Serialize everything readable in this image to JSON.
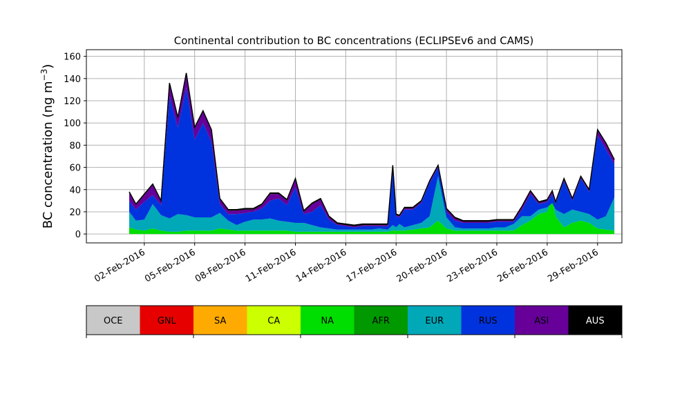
{
  "chart_data": {
    "type": "area",
    "stacked": true,
    "title": "Continental contribution to BC concentrations (ECLIPSEv6 and CAMS)",
    "ylabel": "BC concentration (ng m⁻³)",
    "ylabel_main": "BC concentration (ng m",
    "ylabel_sup": "−3",
    "ylabel_end": ")",
    "xlabel": "",
    "ylim": [
      -8,
      166
    ],
    "yticks": [
      0,
      20,
      40,
      60,
      80,
      100,
      120,
      140,
      160
    ],
    "xlim_days": [
      -1.45,
      30.45
    ],
    "xticks": [
      {
        "day": 2,
        "label": "02-Feb-2016"
      },
      {
        "day": 5,
        "label": "05-Feb-2016"
      },
      {
        "day": 8,
        "label": "08-Feb-2016"
      },
      {
        "day": 11,
        "label": "11-Feb-2016"
      },
      {
        "day": 14,
        "label": "14-Feb-2016"
      },
      {
        "day": 17,
        "label": "17-Feb-2016"
      },
      {
        "day": 20,
        "label": "20-Feb-2016"
      },
      {
        "day": 23,
        "label": "23-Feb-2016"
      },
      {
        "day": 26,
        "label": "26-Feb-2016"
      },
      {
        "day": 29,
        "label": "29-Feb-2016"
      }
    ],
    "grid": true,
    "legend": "bottom colorbar",
    "x": [
      1.1,
      1.5,
      2.0,
      2.5,
      3.0,
      3.5,
      4.0,
      4.5,
      5.0,
      5.5,
      6.0,
      6.5,
      7.0,
      7.5,
      8.0,
      8.5,
      9.0,
      9.5,
      10.0,
      10.5,
      11.0,
      11.5,
      12.0,
      12.5,
      13.0,
      13.5,
      14.0,
      14.5,
      15.0,
      15.5,
      16.0,
      16.5,
      16.8,
      17.0,
      17.2,
      17.5,
      18.0,
      18.5,
      19.0,
      19.5,
      20.0,
      20.5,
      21.0,
      21.5,
      22.0,
      22.5,
      23.0,
      23.5,
      24.0,
      24.5,
      25.0,
      25.5,
      26.0,
      26.3,
      26.5,
      27.0,
      27.5,
      28.0,
      28.5,
      29.0,
      29.5,
      30.0
    ],
    "series": [
      {
        "name": "NA",
        "color": "#00dd00",
        "values": [
          6,
          4,
          3,
          5,
          3,
          2,
          2,
          3,
          3,
          3,
          3,
          5,
          4,
          3,
          3,
          3,
          3,
          3,
          3,
          3,
          2,
          2,
          2,
          2,
          2,
          2,
          2,
          2,
          2,
          2,
          2,
          2,
          3,
          3,
          3,
          3,
          4,
          5,
          6,
          12,
          5,
          3,
          3,
          3,
          3,
          3,
          3,
          3,
          3,
          8,
          12,
          18,
          20,
          32,
          16,
          6,
          10,
          12,
          10,
          5,
          4,
          3
        ]
      },
      {
        "name": "EUR",
        "color": "#00a8b8",
        "values": [
          14,
          8,
          10,
          22,
          14,
          12,
          16,
          14,
          12,
          12,
          12,
          14,
          8,
          5,
          8,
          10,
          10,
          11,
          9,
          8,
          8,
          8,
          6,
          4,
          3,
          2,
          2,
          2,
          2,
          2,
          3,
          2,
          5,
          3,
          6,
          3,
          4,
          5,
          10,
          40,
          10,
          3,
          2,
          2,
          2,
          2,
          3,
          3,
          6,
          8,
          4,
          4,
          4,
          -4,
          6,
          12,
          12,
          8,
          8,
          8,
          12,
          30
        ]
      },
      {
        "name": "RUS",
        "color": "#0033dd",
        "values": [
          10,
          10,
          16,
          8,
          9,
          110,
          78,
          115,
          70,
          85,
          68,
          8,
          6,
          10,
          8,
          7,
          10,
          16,
          20,
          15,
          32,
          8,
          12,
          20,
          8,
          4,
          3,
          2,
          3,
          3,
          2,
          3,
          52,
          10,
          6,
          16,
          14,
          18,
          30,
          8,
          5,
          6,
          5,
          5,
          5,
          5,
          5,
          5,
          2,
          6,
          20,
          5,
          5,
          8,
          5,
          30,
          8,
          30,
          20,
          76,
          60,
          30
        ]
      },
      {
        "name": "ASI",
        "color": "#660099",
        "values": [
          7,
          4,
          6,
          9,
          3,
          11,
          8,
          12,
          10,
          10,
          10,
          4,
          3,
          3,
          3,
          2,
          3,
          6,
          4,
          4,
          7,
          2,
          7,
          5,
          2,
          1,
          1,
          1,
          1,
          1,
          1,
          1,
          1,
          1,
          1,
          1,
          1,
          1,
          1,
          1,
          2,
          2,
          1,
          1,
          1,
          1,
          1,
          1,
          1,
          2,
          2,
          1,
          1,
          2,
          1,
          1,
          1,
          1,
          1,
          4,
          5,
          3
        ]
      },
      {
        "name": "AUS",
        "color": "#000000",
        "values": [
          1,
          1,
          1,
          1,
          1,
          1,
          1,
          1,
          1,
          1,
          1,
          1,
          1,
          1,
          1,
          1,
          1,
          1,
          1,
          1,
          1,
          1,
          1,
          1,
          1,
          1,
          1,
          1,
          1,
          1,
          1,
          1,
          1,
          1,
          1,
          1,
          1,
          1,
          1,
          1,
          1,
          1,
          1,
          1,
          1,
          1,
          1,
          1,
          1,
          1,
          1,
          1,
          1,
          1,
          1,
          1,
          1,
          1,
          1,
          1,
          1,
          1
        ]
      }
    ],
    "colorbar": [
      {
        "label": "OCE",
        "color": "#c8c8c8",
        "text": "#000000"
      },
      {
        "label": "GNL",
        "color": "#e60000",
        "text": "#000000"
      },
      {
        "label": "SA",
        "color": "#ffaa00",
        "text": "#000000"
      },
      {
        "label": "CA",
        "color": "#ccff00",
        "text": "#000000"
      },
      {
        "label": "NA",
        "color": "#00dd00",
        "text": "#000000"
      },
      {
        "label": "AFR",
        "color": "#009900",
        "text": "#000000"
      },
      {
        "label": "EUR",
        "color": "#00a8b8",
        "text": "#000000"
      },
      {
        "label": "RUS",
        "color": "#0033dd",
        "text": "#000000"
      },
      {
        "label": "ASI",
        "color": "#660099",
        "text": "#000000"
      },
      {
        "label": "AUS",
        "color": "#000000",
        "text": "#ffffff"
      }
    ]
  }
}
